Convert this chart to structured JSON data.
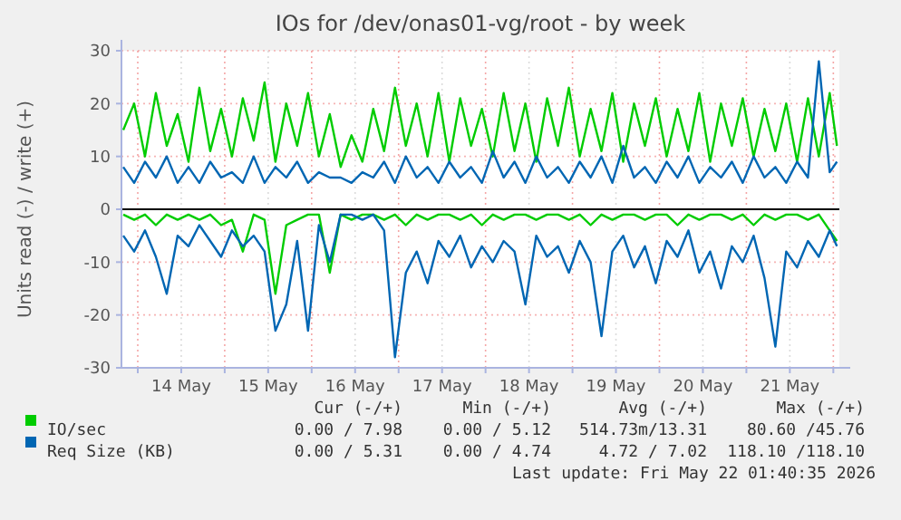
{
  "chart_data": {
    "type": "line",
    "title": "IOs for /dev/onas01-vg/root - by week",
    "ylabel": "Units read (-) / write (+)",
    "x": [
      "2026-05-13T20:00",
      "2026-05-13T23:00",
      "2026-05-14T02:00",
      "2026-05-14T05:00",
      "2026-05-14T08:00",
      "2026-05-14T11:00",
      "2026-05-14T14:00",
      "2026-05-14T17:00",
      "2026-05-14T20:00",
      "2026-05-14T23:00",
      "2026-05-15T02:00",
      "2026-05-15T05:00",
      "2026-05-15T08:00",
      "2026-05-15T11:00",
      "2026-05-15T14:00",
      "2026-05-15T17:00",
      "2026-05-15T20:00",
      "2026-05-15T23:00",
      "2026-05-16T02:00",
      "2026-05-16T05:00",
      "2026-05-16T08:00",
      "2026-05-16T11:00",
      "2026-05-16T14:00",
      "2026-05-16T17:00",
      "2026-05-16T20:00",
      "2026-05-16T23:00",
      "2026-05-17T02:00",
      "2026-05-17T05:00",
      "2026-05-17T08:00",
      "2026-05-17T11:00",
      "2026-05-17T14:00",
      "2026-05-17T17:00",
      "2026-05-17T20:00",
      "2026-05-17T23:00",
      "2026-05-18T02:00",
      "2026-05-18T05:00",
      "2026-05-18T08:00",
      "2026-05-18T11:00",
      "2026-05-18T14:00",
      "2026-05-18T17:00",
      "2026-05-18T20:00",
      "2026-05-18T23:00",
      "2026-05-19T02:00",
      "2026-05-19T05:00",
      "2026-05-19T08:00",
      "2026-05-19T11:00",
      "2026-05-19T14:00",
      "2026-05-19T17:00",
      "2026-05-19T20:00",
      "2026-05-19T23:00",
      "2026-05-20T02:00",
      "2026-05-20T05:00",
      "2026-05-20T08:00",
      "2026-05-20T11:00",
      "2026-05-20T14:00",
      "2026-05-20T17:00",
      "2026-05-20T20:00",
      "2026-05-20T23:00",
      "2026-05-21T02:00",
      "2026-05-21T05:00",
      "2026-05-21T08:00",
      "2026-05-21T11:00",
      "2026-05-21T14:00",
      "2026-05-21T17:00",
      "2026-05-21T20:00",
      "2026-05-21T23:00",
      "2026-05-22T01:00"
    ],
    "series": [
      {
        "name": "IO/sec",
        "color": "#00cc00",
        "values": [
          15,
          20,
          10,
          22,
          12,
          18,
          9,
          23,
          11,
          19,
          10,
          21,
          13,
          24,
          9,
          20,
          12,
          22,
          10,
          18,
          8,
          14,
          9,
          19,
          11,
          23,
          12,
          20,
          10,
          22,
          9,
          21,
          12,
          19,
          10,
          22,
          11,
          20,
          9,
          21,
          12,
          23,
          10,
          19,
          11,
          22,
          9,
          20,
          12,
          21,
          10,
          19,
          11,
          22,
          9,
          20,
          12,
          21,
          10,
          19,
          11,
          20,
          9,
          21,
          10,
          22,
          12
        ]
      },
      {
        "name": "Req Size (KB)",
        "color": "#0066b3",
        "values": [
          8,
          5,
          9,
          6,
          10,
          5,
          8,
          5,
          9,
          6,
          7,
          5,
          10,
          5,
          8,
          6,
          9,
          5,
          7,
          6,
          6,
          5,
          7,
          6,
          9,
          5,
          10,
          6,
          8,
          5,
          9,
          6,
          8,
          5,
          11,
          6,
          9,
          5,
          10,
          6,
          8,
          5,
          9,
          6,
          10,
          5,
          12,
          6,
          8,
          5,
          9,
          6,
          10,
          5,
          8,
          6,
          9,
          5,
          10,
          6,
          8,
          5,
          9,
          6,
          28,
          7,
          9
        ]
      },
      {
        "color": "#00cc00",
        "values": [
          -1,
          -2,
          -1,
          -3,
          -1,
          -2,
          -1,
          -2,
          -1,
          -3,
          -2,
          -8,
          -1,
          -2,
          -16,
          -3,
          -2,
          -1,
          -1,
          -12,
          -1,
          -2,
          -1,
          -1,
          -2,
          -1,
          -3,
          -1,
          -2,
          -1,
          -1,
          -2,
          -1,
          -3,
          -1,
          -2,
          -1,
          -1,
          -2,
          -1,
          -1,
          -2,
          -1,
          -3,
          -1,
          -2,
          -1,
          -1,
          -2,
          -1,
          -1,
          -3,
          -1,
          -2,
          -1,
          -1,
          -2,
          -1,
          -3,
          -1,
          -2,
          -1,
          -1,
          -2,
          -1,
          -4,
          -6
        ]
      },
      {
        "color": "#0066b3",
        "values": [
          -5,
          -8,
          -4,
          -9,
          -16,
          -5,
          -7,
          -3,
          -6,
          -9,
          -4,
          -7,
          -5,
          -8,
          -23,
          -18,
          -6,
          -23,
          -3,
          -10,
          -1,
          -1,
          -2,
          -1,
          -4,
          -28,
          -12,
          -8,
          -14,
          -6,
          -9,
          -5,
          -11,
          -7,
          -10,
          -6,
          -8,
          -18,
          -5,
          -9,
          -7,
          -12,
          -6,
          -10,
          -24,
          -8,
          -5,
          -11,
          -7,
          -14,
          -6,
          -9,
          -4,
          -12,
          -8,
          -15,
          -7,
          -10,
          -5,
          -13,
          -26,
          -8,
          -11,
          -6,
          -9,
          -4,
          -7
        ]
      }
    ],
    "xlim": [
      "2026-05-13T19:30",
      "2026-05-22T01:40"
    ],
    "xticks": [
      {
        "value": "2026-05-14T00:00",
        "label": null
      },
      {
        "value": "2026-05-14T12:00",
        "label": "14 May"
      },
      {
        "value": "2026-05-15T00:00",
        "label": null
      },
      {
        "value": "2026-05-15T12:00",
        "label": "15 May"
      },
      {
        "value": "2026-05-16T00:00",
        "label": null
      },
      {
        "value": "2026-05-16T12:00",
        "label": "16 May"
      },
      {
        "value": "2026-05-17T00:00",
        "label": null
      },
      {
        "value": "2026-05-17T12:00",
        "label": "17 May"
      },
      {
        "value": "2026-05-18T00:00",
        "label": null
      },
      {
        "value": "2026-05-18T12:00",
        "label": "18 May"
      },
      {
        "value": "2026-05-19T00:00",
        "label": null
      },
      {
        "value": "2026-05-19T12:00",
        "label": "19 May"
      },
      {
        "value": "2026-05-20T00:00",
        "label": null
      },
      {
        "value": "2026-05-20T12:00",
        "label": "20 May"
      },
      {
        "value": "2026-05-21T00:00",
        "label": null
      },
      {
        "value": "2026-05-21T12:00",
        "label": "21 May"
      },
      {
        "value": "2026-05-22T00:00",
        "label": null
      }
    ],
    "ylim": [
      -30,
      30
    ],
    "yticks": [
      -30,
      -20,
      -10,
      0,
      10,
      20,
      30
    ],
    "grid": true,
    "legend": "bottom",
    "marker": "none",
    "line_style": "solid",
    "ref_lines": [
      {
        "axis": "y",
        "value": 0,
        "color": "#000000"
      }
    ],
    "annotations": [
      "Cur (-/+)",
      "Min (-/+)",
      "Avg (-/+)",
      "Max (-/+)",
      "0.00 / 7.98",
      "0.00 / 5.12",
      "514.73m/13.31",
      "80.60 /45.76",
      "0.00 / 5.31",
      "0.00 / 4.74",
      "4.72 / 7.02",
      "118.10 /118.10",
      "Last update: Fri May 22 01:40:35 2026"
    ]
  }
}
